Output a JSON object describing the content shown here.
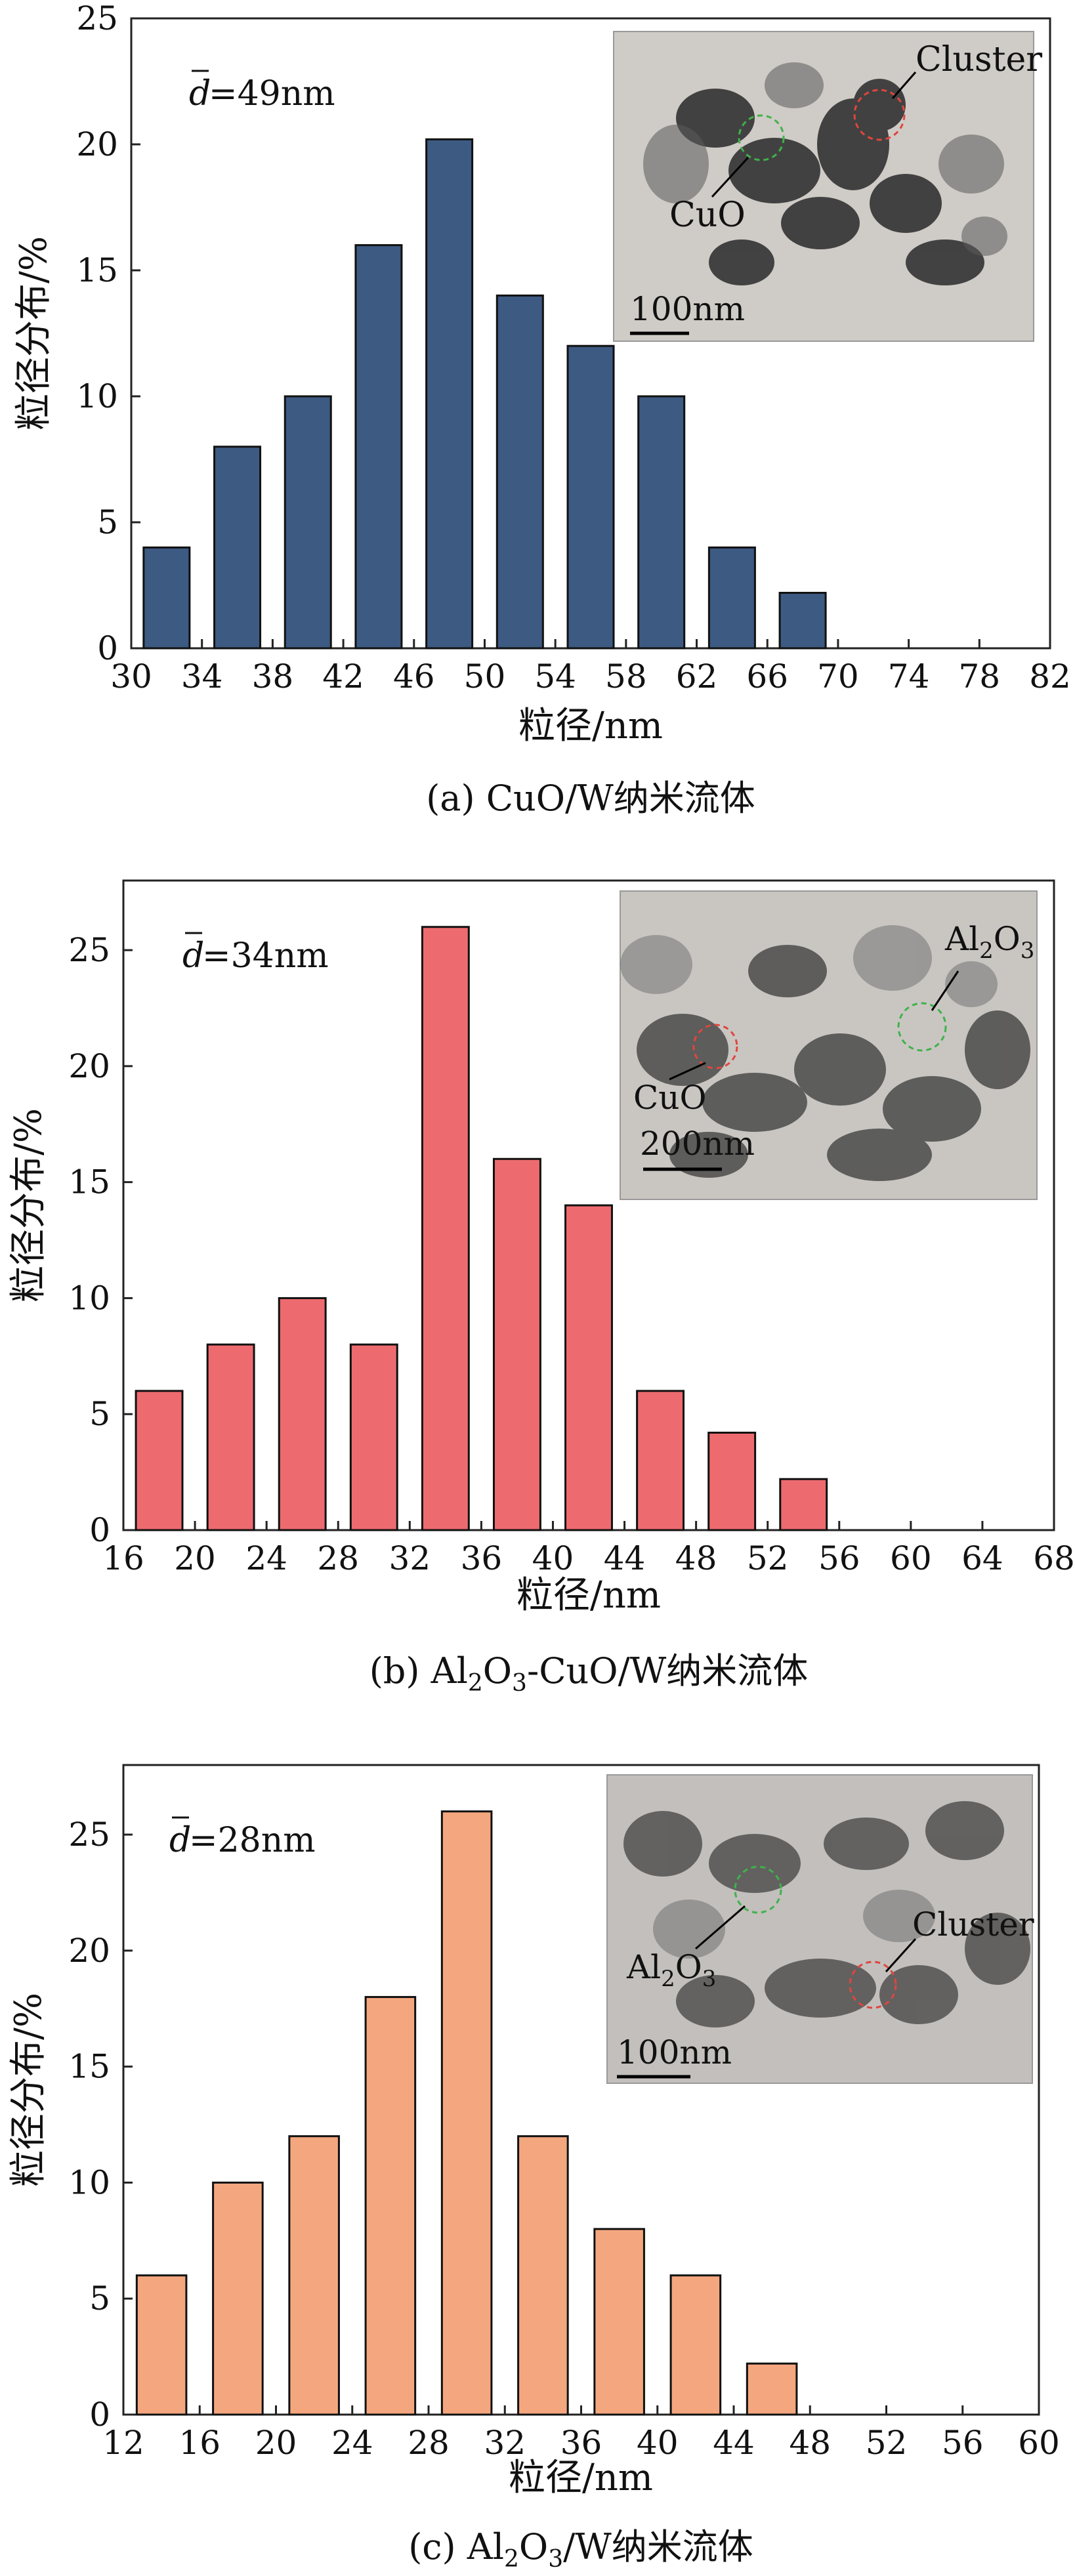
{
  "chart_data": [
    {
      "type": "bar",
      "panel": "a",
      "caption_prefix": "(a) CuO/W",
      "caption_suffix": "纳米流体",
      "mean_label": "=49nm",
      "mean_symbol": "d",
      "xlabel": "粒径/nm",
      "ylabel": "粒径分布/%",
      "ylim": [
        0,
        25
      ],
      "yticks": [
        0,
        5,
        10,
        15,
        20,
        25
      ],
      "xticks": [
        30,
        34,
        38,
        42,
        46,
        50,
        54,
        58,
        62,
        66,
        70,
        74,
        78,
        82
      ],
      "xlim": [
        30,
        82
      ],
      "bins": [
        [
          30,
          34
        ],
        [
          34,
          38
        ],
        [
          38,
          42
        ],
        [
          42,
          46
        ],
        [
          46,
          50
        ],
        [
          50,
          54
        ],
        [
          54,
          58
        ],
        [
          58,
          62
        ],
        [
          62,
          66
        ],
        [
          66,
          70
        ]
      ],
      "values": [
        4,
        8,
        10,
        16,
        20.2,
        14,
        12,
        10,
        4,
        2.2
      ],
      "bar_color": "#3d5a82",
      "inset": {
        "scale_label": "100nm",
        "labels": [
          "Cluster",
          "CuO"
        ]
      }
    },
    {
      "type": "bar",
      "panel": "b",
      "caption_prefix": "(b) Al",
      "caption_sub1": "2",
      "caption_mid": "O",
      "caption_sub2": "3",
      "caption_rest": "-CuO/W",
      "caption_suffix": "纳米流体",
      "mean_label": "=34nm",
      "mean_symbol": "d",
      "xlabel": "粒径/nm",
      "ylabel": "粒径分布/%",
      "ylim": [
        0,
        28
      ],
      "yticks": [
        0,
        5,
        10,
        15,
        20,
        25
      ],
      "xticks": [
        16,
        20,
        24,
        28,
        32,
        36,
        40,
        44,
        48,
        52,
        56,
        60,
        64,
        68
      ],
      "xlim": [
        16,
        68
      ],
      "bins": [
        [
          16,
          20
        ],
        [
          20,
          24
        ],
        [
          24,
          28
        ],
        [
          28,
          32
        ],
        [
          32,
          36
        ],
        [
          36,
          40
        ],
        [
          40,
          44
        ],
        [
          44,
          48
        ],
        [
          48,
          52
        ],
        [
          52,
          56
        ]
      ],
      "values": [
        6,
        8,
        10,
        8,
        26,
        16,
        14,
        6,
        4.2,
        2.2
      ],
      "bar_color": "#ed6b6f",
      "inset": {
        "scale_label": "200nm",
        "labels": [
          "Al2O3",
          "CuO"
        ]
      }
    },
    {
      "type": "bar",
      "panel": "c",
      "caption_prefix": "(c) Al",
      "caption_sub1": "2",
      "caption_mid": "O",
      "caption_sub2": "3",
      "caption_rest": "/W",
      "caption_suffix": "纳米流体",
      "mean_label": "=28nm",
      "mean_symbol": "d",
      "xlabel": "粒径/nm",
      "ylabel": "粒径分布/%",
      "ylim": [
        0,
        28
      ],
      "yticks": [
        0,
        5,
        10,
        15,
        20,
        25
      ],
      "xticks": [
        12,
        16,
        20,
        24,
        28,
        32,
        36,
        40,
        44,
        48,
        52,
        56,
        60
      ],
      "xlim": [
        12,
        60
      ],
      "bins": [
        [
          12,
          16
        ],
        [
          16,
          20
        ],
        [
          20,
          24
        ],
        [
          24,
          28
        ],
        [
          28,
          32
        ],
        [
          32,
          36
        ],
        [
          36,
          40
        ],
        [
          40,
          44
        ],
        [
          44,
          48
        ]
      ],
      "values": [
        6,
        10,
        12,
        18,
        26,
        12,
        8,
        6,
        2.2
      ],
      "bar_color": "#f4a77e",
      "inset": {
        "scale_label": "100nm",
        "labels": [
          "Cluster",
          "Al2O3"
        ]
      }
    }
  ]
}
